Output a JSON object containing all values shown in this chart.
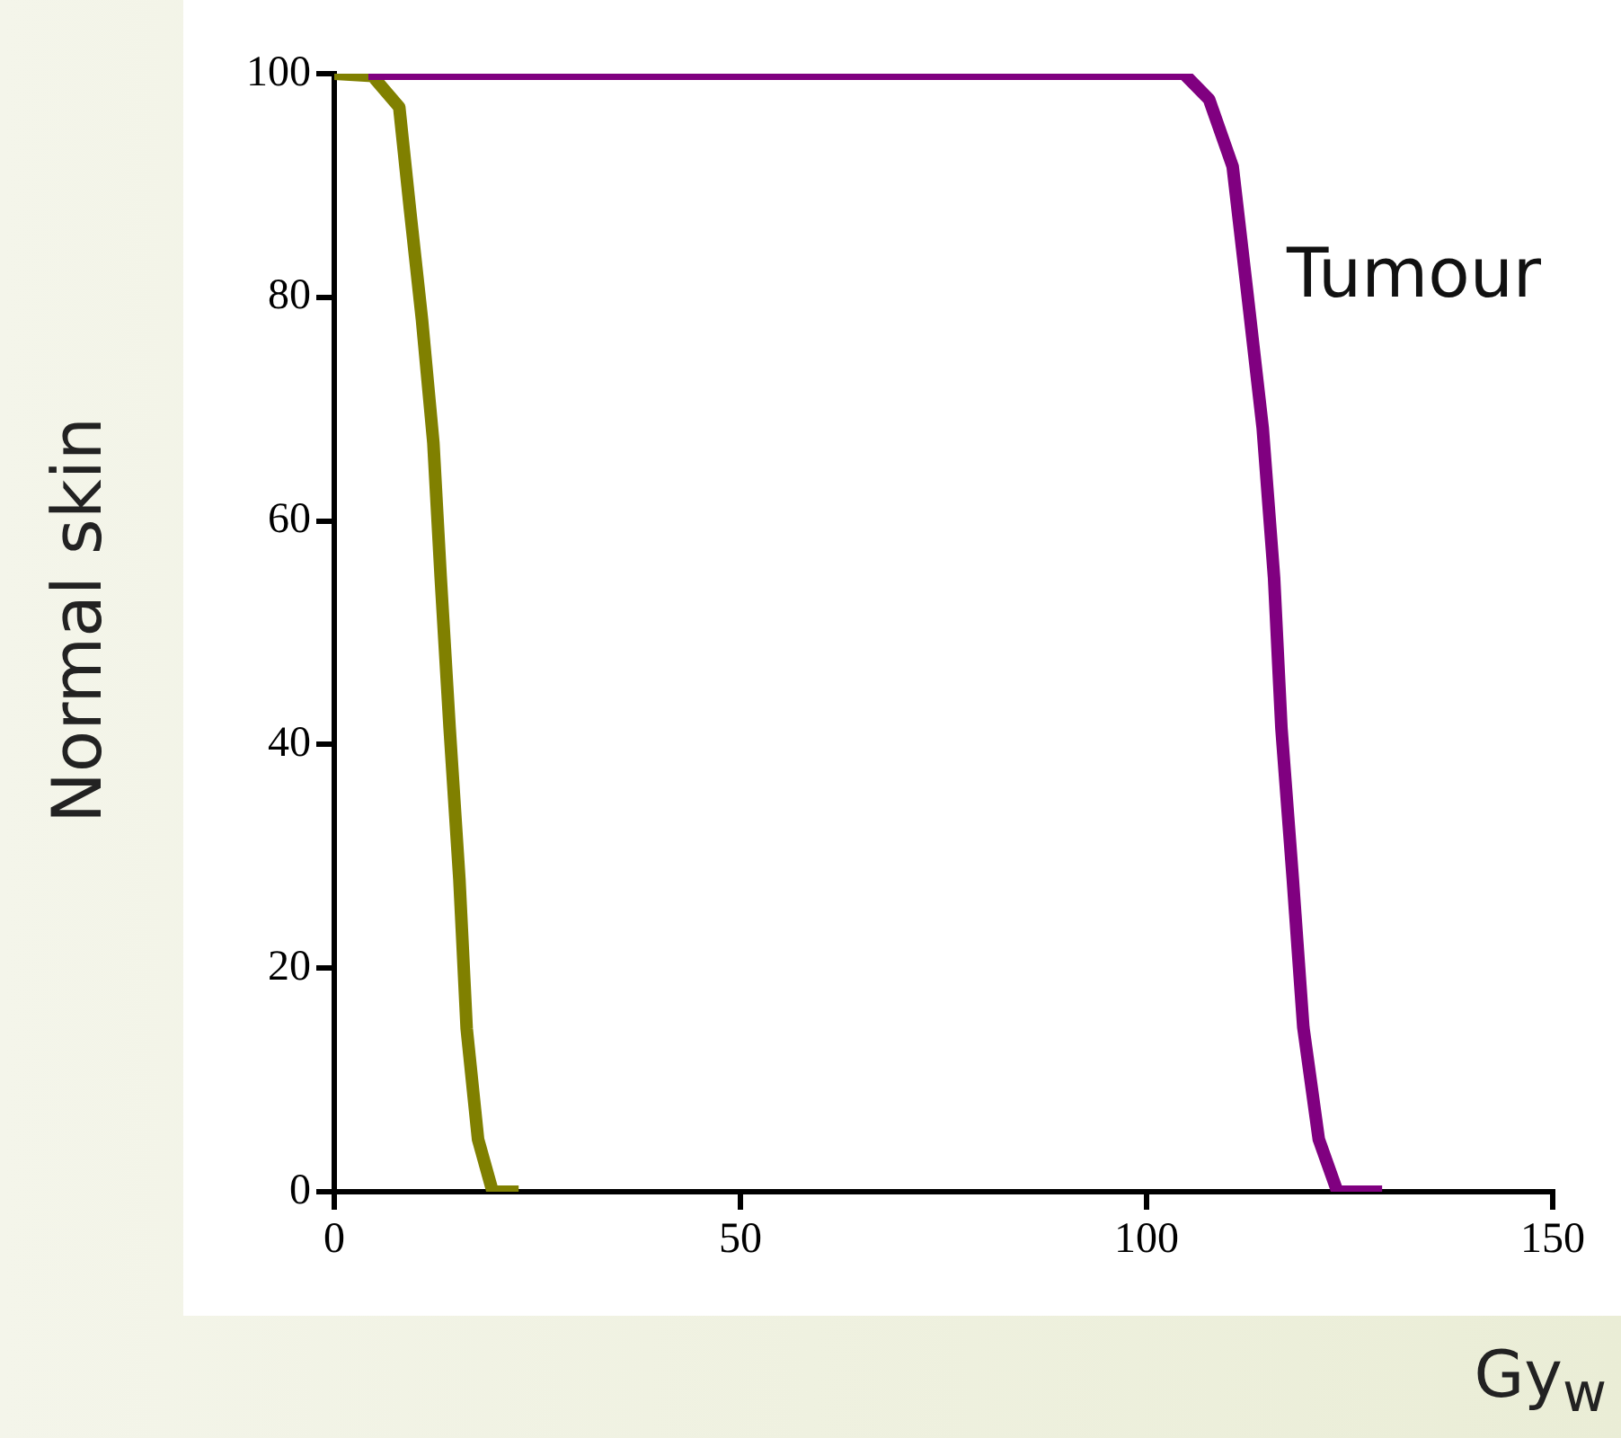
{
  "chart_data": {
    "type": "line",
    "xlabel": "Gy$_{w}$",
    "ylabel": "Normal skin",
    "xlim": [
      0,
      150
    ],
    "xticks": [
      0,
      50,
      100,
      150
    ],
    "ylim": [
      0,
      100
    ],
    "yticks": [
      0,
      20,
      40,
      60,
      80,
      100
    ],
    "legend": false,
    "grid": false,
    "series": [
      {
        "color": "#808000",
        "x": [
          0,
          4.7,
          8,
          9.3,
          10.8,
          12.2,
          13.1,
          14.2,
          15.4,
          16.3,
          17.7,
          19.5,
          22.7
        ],
        "values": [
          100,
          99.8,
          97,
          88,
          78,
          67,
          55,
          41.5,
          28,
          14.6,
          4.7,
          0,
          0
        ]
      },
      {
        "name": "Tumour",
        "color": "#800080",
        "x": [
          4.2,
          104.6,
          107.7,
          110.6,
          112.4,
          114.3,
          115.7,
          116.6,
          118,
          119.3,
          121.2,
          123.5,
          129
        ],
        "values": [
          100,
          100,
          97.7,
          91.7,
          80.4,
          68.3,
          54.9,
          41.5,
          28,
          14.7,
          4.7,
          0,
          0
        ]
      }
    ]
  }
}
